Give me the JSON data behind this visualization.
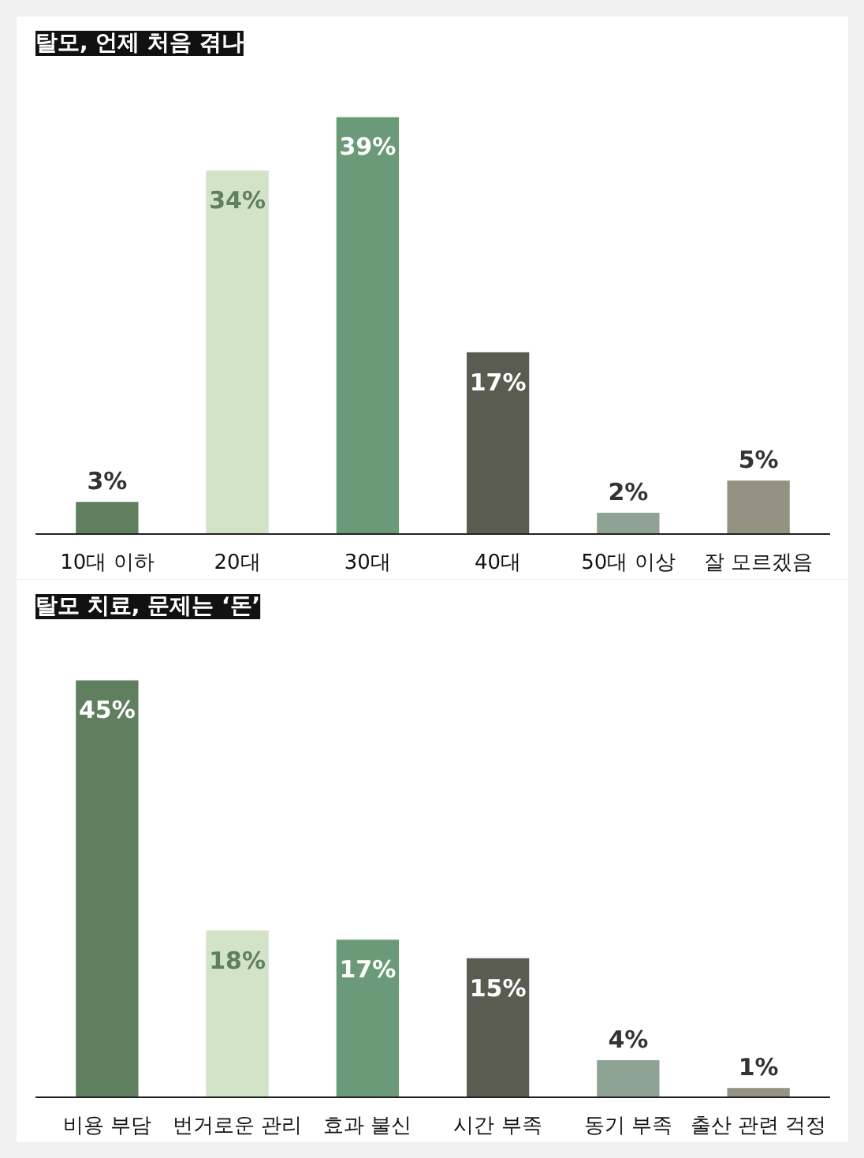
{
  "chart_data": [
    {
      "type": "bar",
      "title": "탈모, 언제 처음 겪나",
      "categories": [
        "10대 이하",
        "20대",
        "30대",
        "40대",
        "50대 이상",
        "잘 모르겠음"
      ],
      "values": [
        3,
        34,
        39,
        17,
        2,
        5
      ],
      "colors": [
        "#5f7f5f",
        "#d3e3c8",
        "#6a9a78",
        "#5a5c52",
        "#8fa394",
        "#939283"
      ],
      "value_labels": [
        "3%",
        "34%",
        "39%",
        "17%",
        "2%",
        "5%"
      ]
    },
    {
      "type": "bar",
      "title": "탈모 치료, 문제는 ‘돈’",
      "categories": [
        "비용 부담",
        "번거로운 관리",
        "효과 불신",
        "시간 부족",
        "동기 부족",
        "출산 관련 걱정"
      ],
      "values": [
        45,
        18,
        17,
        15,
        4,
        1
      ],
      "colors": [
        "#5f7f5f",
        "#d3e3c8",
        "#6a9a78",
        "#5a5c52",
        "#8fa394",
        "#939283"
      ],
      "value_labels": [
        "45%",
        "18%",
        "17%",
        "15%",
        "4%",
        "1%"
      ]
    }
  ]
}
